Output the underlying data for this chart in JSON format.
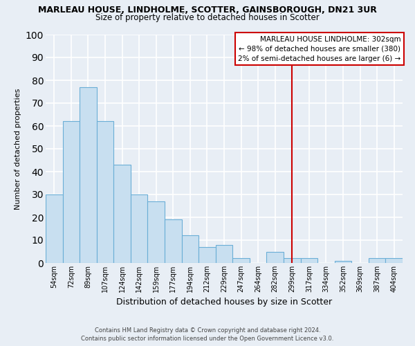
{
  "title": "MARLEAU HOUSE, LINDHOLME, SCOTTER, GAINSBOROUGH, DN21 3UR",
  "subtitle": "Size of property relative to detached houses in Scotter",
  "xlabel": "Distribution of detached houses by size in Scotter",
  "ylabel": "Number of detached properties",
  "categories": [
    "54sqm",
    "72sqm",
    "89sqm",
    "107sqm",
    "124sqm",
    "142sqm",
    "159sqm",
    "177sqm",
    "194sqm",
    "212sqm",
    "229sqm",
    "247sqm",
    "264sqm",
    "282sqm",
    "299sqm",
    "317sqm",
    "334sqm",
    "352sqm",
    "369sqm",
    "387sqm",
    "404sqm"
  ],
  "values": [
    30,
    62,
    77,
    62,
    43,
    30,
    27,
    19,
    12,
    7,
    8,
    2,
    0,
    5,
    2,
    2,
    0,
    1,
    0,
    2,
    2
  ],
  "bar_color": "#c8dff0",
  "bar_edge_color": "#6aaed6",
  "reference_line_index": 14,
  "reference_label": "MARLEAU HOUSE LINDHOLME: 302sqm",
  "annotation_line1": "← 98% of detached houses are smaller (380)",
  "annotation_line2": "2% of semi-detached houses are larger (6) →",
  "ref_line_color": "#cc0000",
  "ylim": [
    0,
    100
  ],
  "yticks": [
    0,
    10,
    20,
    30,
    40,
    50,
    60,
    70,
    80,
    90,
    100
  ],
  "background_color": "#e8eef5",
  "grid_color": "#ffffff",
  "footer_line1": "Contains HM Land Registry data © Crown copyright and database right 2024.",
  "footer_line2": "Contains public sector information licensed under the Open Government Licence v3.0."
}
